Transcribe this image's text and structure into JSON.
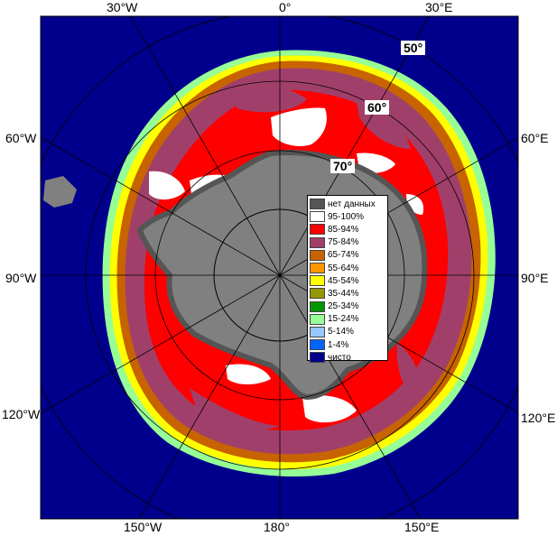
{
  "edge_labels": {
    "top": [
      "30°W",
      "0°",
      "30°E"
    ],
    "left": [
      "60°W",
      "90°W",
      "120°W"
    ],
    "right": [
      "60°E",
      "90°E",
      "120°E"
    ],
    "bottom": [
      "150°W",
      "180°",
      "150°E"
    ]
  },
  "lat_labels": [
    "50°",
    "60°",
    "70°"
  ],
  "legend": [
    {
      "label": "нет данных",
      "color": "#555555"
    },
    {
      "label": "95-100%",
      "color": "#ffffff"
    },
    {
      "label": "85-94%",
      "color": "#ff0000"
    },
    {
      "label": "75-84%",
      "color": "#a0406a"
    },
    {
      "label": "65-74%",
      "color": "#c86400"
    },
    {
      "label": "55-64%",
      "color": "#ff9600"
    },
    {
      "label": "45-54%",
      "color": "#ffff00"
    },
    {
      "label": "35-44%",
      "color": "#969600"
    },
    {
      "label": "25-34%",
      "color": "#009600"
    },
    {
      "label": "15-24%",
      "color": "#96ff96"
    },
    {
      "label": "5-14%",
      "color": "#96c8ff"
    },
    {
      "label": "1-4%",
      "color": "#0064ff"
    },
    {
      "label": "чисто",
      "color": "#00008c"
    }
  ],
  "colors": {
    "ocean": "#00008c",
    "land": "#808080",
    "grid": "#000000"
  }
}
